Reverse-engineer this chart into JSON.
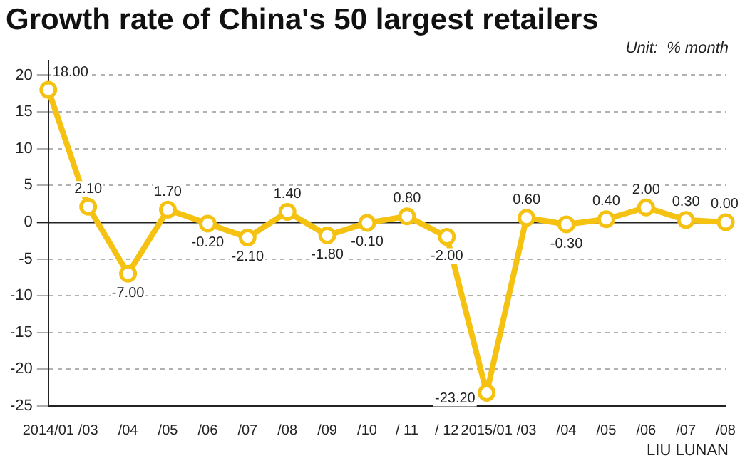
{
  "chart_data": {
    "type": "line",
    "title": "Growth rate of China's 50 largest retailers",
    "subtitle": "Unit:  % month",
    "categories": [
      "2014/01",
      "/03",
      "/04",
      "/05",
      "/06",
      "/07",
      "/08",
      "/09",
      "/10",
      "/ 11",
      "/ 12",
      "2015/01",
      "/03",
      "/04",
      "/05",
      "/06",
      "/07",
      "/08"
    ],
    "series": [
      {
        "color": "#f5c211",
        "values": [
          18,
          2.1,
          -7,
          1.7,
          -0.2,
          -2.1,
          1.4,
          -1.8,
          -0.1,
          0.8,
          -2,
          -23.2,
          0.6,
          -0.3,
          0.4,
          2,
          0.3,
          0
        ],
        "value_labels": [
          "18.00",
          "2.10",
          "-7.00",
          "1.70",
          "-0.20",
          "-2.10",
          "1.40",
          "-1.80",
          "-0.10",
          "0.80",
          "-2.00",
          "-23.20",
          "0.60",
          "-0.30",
          "0.40",
          "2.00",
          "0.30",
          "0.00"
        ]
      }
    ],
    "ylim": [
      -25,
      22
    ],
    "yticks": [
      -25,
      -20,
      -15,
      -10,
      -5,
      0,
      5,
      10,
      15,
      20
    ],
    "grid": "y",
    "legend": false,
    "marker": "circle",
    "line_style": "solid",
    "annotations": [
      "LIU LUNAN"
    ]
  }
}
